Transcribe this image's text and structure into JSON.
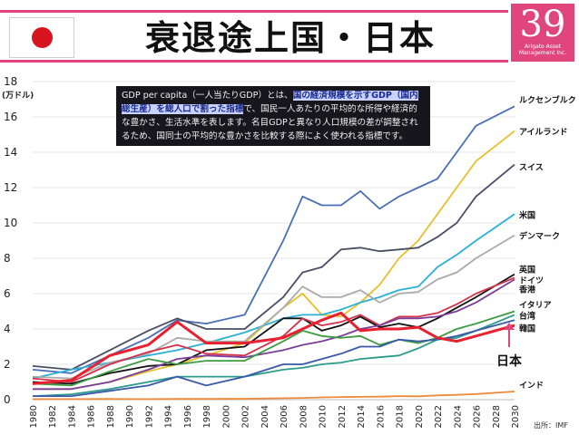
{
  "header": {
    "title": "衰退途上国・日本",
    "badge_number": "39",
    "badge_brand": "Arigato Asset Management Inc.",
    "accent": "#e0457b"
  },
  "note": {
    "part1": "GDP per capita（一人当たりGDP）とは、",
    "highlight": "国の経済規模を示すGDP（国内総生産）を総人口で割った指標",
    "part2": "で、国民一人あたりの平均的な所得や経済的な豊かさ、生活水準を表します。名目GDPと異なり人口規模の差が調整されるため、国同士の平均的な豊かさを比較する際によく使われる指標です。"
  },
  "source": "出所：IMF",
  "japan_label": "日本",
  "chart_data": {
    "type": "line",
    "ylabel": "(万ドル)",
    "ylim": [
      0,
      18
    ],
    "yticks": [
      0,
      2,
      4,
      6,
      8,
      10,
      12,
      14,
      16,
      18
    ],
    "xticks": [
      "1980",
      "1982",
      "1984",
      "1986",
      "1988",
      "1990",
      "1992",
      "1994",
      "1996",
      "1998",
      "2000",
      "2002",
      "2004",
      "2006",
      "2008",
      "2010",
      "2012",
      "2014",
      "2016",
      "2018",
      "2020",
      "2022",
      "2024",
      "2026",
      "2028",
      "2030"
    ],
    "grid": true,
    "x": [
      1980,
      1984,
      1988,
      1992,
      1995,
      1998,
      2002,
      2006,
      2008,
      2010,
      2012,
      2014,
      2016,
      2018,
      2020,
      2022,
      2024,
      2026,
      2030
    ],
    "series": [
      {
        "name": "ルクセンブルク",
        "color": "#4a6fb5",
        "values": [
          1.7,
          1.5,
          2.5,
          3.5,
          4.5,
          4.3,
          4.8,
          9.0,
          11.5,
          11.0,
          11.0,
          11.8,
          10.8,
          11.5,
          12.0,
          12.5,
          14.0,
          15.5,
          16.6
        ]
      },
      {
        "name": "アイルランド",
        "color": "#e6c02a",
        "values": [
          0.6,
          0.6,
          1.0,
          1.6,
          2.0,
          2.5,
          3.2,
          5.2,
          6.0,
          4.8,
          4.7,
          5.5,
          6.5,
          8.0,
          9.0,
          10.5,
          12.0,
          13.5,
          15.2
        ]
      },
      {
        "name": "スイス",
        "color": "#4a4f66",
        "values": [
          1.9,
          1.7,
          2.8,
          3.9,
          4.6,
          4.0,
          4.0,
          5.8,
          7.2,
          7.5,
          8.5,
          8.6,
          8.4,
          8.5,
          8.6,
          9.2,
          10.0,
          11.5,
          13.3
        ]
      },
      {
        "name": "米国",
        "color": "#2ab0d8",
        "values": [
          1.2,
          1.7,
          2.1,
          2.5,
          2.8,
          3.2,
          3.8,
          4.6,
          4.8,
          4.8,
          5.1,
          5.5,
          5.8,
          6.2,
          6.4,
          7.5,
          8.2,
          9.0,
          10.5
        ]
      },
      {
        "name": "デンマーク",
        "color": "#aaaaaa",
        "values": [
          1.3,
          1.2,
          2.1,
          2.6,
          3.5,
          3.3,
          3.3,
          5.2,
          6.4,
          5.8,
          5.8,
          6.2,
          5.5,
          6.0,
          6.1,
          6.8,
          7.2,
          8.0,
          9.3
        ]
      },
      {
        "name": "英国",
        "color": "#111111",
        "values": [
          1.0,
          0.9,
          1.5,
          1.9,
          2.0,
          2.8,
          3.0,
          4.6,
          4.6,
          3.9,
          4.2,
          4.7,
          4.1,
          4.3,
          4.1,
          4.6,
          5.2,
          5.8,
          7.1
        ]
      },
      {
        "name": "ドイツ",
        "color": "#d4314a",
        "values": [
          1.2,
          1.0,
          2.0,
          2.7,
          3.1,
          2.6,
          2.5,
          3.6,
          4.6,
          4.2,
          4.4,
          4.8,
          4.2,
          4.7,
          4.7,
          4.9,
          5.4,
          6.0,
          6.9
        ]
      },
      {
        "name": "香港",
        "color": "#7a3d99",
        "values": [
          0.6,
          0.6,
          1.0,
          1.7,
          2.3,
          2.5,
          2.4,
          2.8,
          3.1,
          3.3,
          3.6,
          4.0,
          4.2,
          4.6,
          4.6,
          4.7,
          5.0,
          5.5,
          6.8
        ]
      },
      {
        "name": "イタリア",
        "color": "#3d9b43",
        "values": [
          0.9,
          0.8,
          1.6,
          2.3,
          2.0,
          2.2,
          2.2,
          3.3,
          3.9,
          3.6,
          3.5,
          3.6,
          3.1,
          3.4,
          3.2,
          3.5,
          4.0,
          4.3,
          5.0
        ]
      },
      {
        "name": "台湾",
        "color": "#2b9b8c",
        "values": [
          0.2,
          0.3,
          0.6,
          1.0,
          1.3,
          1.3,
          1.3,
          1.7,
          1.8,
          2.0,
          2.1,
          2.3,
          2.4,
          2.5,
          2.9,
          3.4,
          3.5,
          3.9,
          4.8
        ]
      },
      {
        "name": "韓国",
        "color": "#3a5aa8",
        "values": [
          0.2,
          0.2,
          0.5,
          0.8,
          1.3,
          0.8,
          1.3,
          2.0,
          2.0,
          2.3,
          2.6,
          3.0,
          3.0,
          3.4,
          3.3,
          3.4,
          3.6,
          3.9,
          4.5
        ]
      },
      {
        "name": "日本",
        "color": "#e8202f",
        "values": [
          0.9,
          1.1,
          2.5,
          3.1,
          4.4,
          3.2,
          3.2,
          3.5,
          4.0,
          4.5,
          4.9,
          3.9,
          4.0,
          4.0,
          4.1,
          3.5,
          3.3,
          3.6,
          4.2
        ]
      },
      {
        "name": "インド",
        "color": "#ee8a3a",
        "values": [
          0.03,
          0.03,
          0.04,
          0.03,
          0.04,
          0.04,
          0.05,
          0.08,
          0.1,
          0.13,
          0.15,
          0.16,
          0.17,
          0.2,
          0.19,
          0.24,
          0.27,
          0.32,
          0.46
        ]
      }
    ]
  }
}
